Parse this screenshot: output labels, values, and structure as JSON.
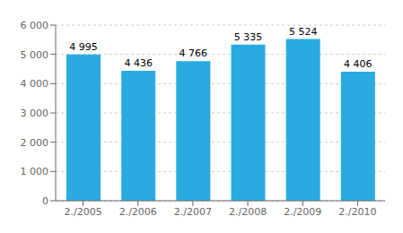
{
  "chart_data": {
    "type": "bar",
    "categories": [
      "2./2005",
      "2./2006",
      "2./2007",
      "2./2008",
      "2./2009",
      "2./2010"
    ],
    "values": [
      4995,
      4436,
      4766,
      5335,
      5524,
      4406
    ],
    "value_labels": [
      "4 995",
      "4 436",
      "4 766",
      "5 335",
      "5 524",
      "4 406"
    ],
    "data_labels": true,
    "color": "#29ABE2",
    "ylim": [
      0,
      6000
    ],
    "yticks": [
      0,
      {
        "value": 1000,
        "label": "1 000"
      },
      {
        "value": 2000,
        "label": "2 000"
      },
      {
        "value": 3000,
        "label": "3 000"
      },
      {
        "value": 4000,
        "label": "4 000"
      },
      {
        "value": 5000,
        "label": "5 000"
      },
      {
        "value": 6000,
        "label": "6 000"
      }
    ],
    "grid": true
  }
}
